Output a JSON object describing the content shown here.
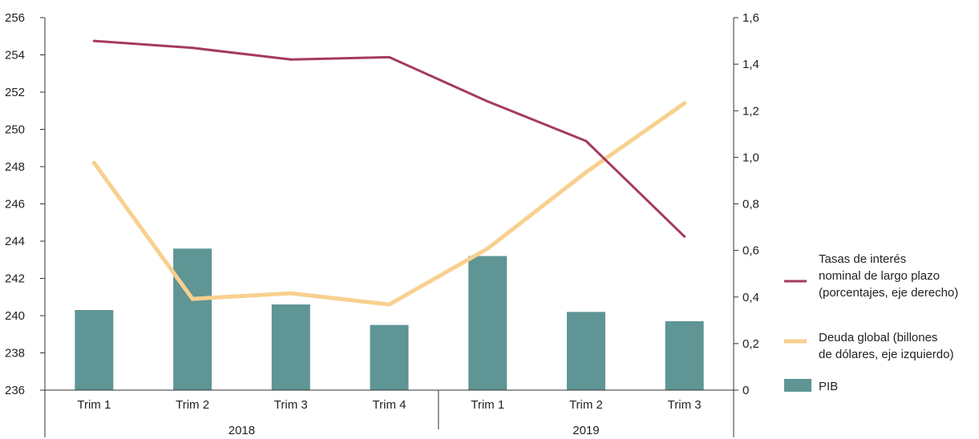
{
  "chart_data": {
    "type": "bar",
    "title": "",
    "xlabel": "",
    "ylabel_left": "",
    "ylabel_right": "",
    "categories": [
      "Trim 1",
      "Trim 2",
      "Trim 3",
      "Trim 4",
      "Trim 1",
      "Trim 2",
      "Trim 3"
    ],
    "groups": [
      {
        "label": "2018",
        "count": 4
      },
      {
        "label": "2019",
        "count": 3
      }
    ],
    "ylim_left": [
      236,
      256
    ],
    "yticks_left": [
      "236",
      "238",
      "240",
      "242",
      "244",
      "246",
      "248",
      "250",
      "252",
      "254",
      "256"
    ],
    "ylim_right": [
      0,
      1.6
    ],
    "yticks_right": [
      "0",
      "0,2",
      "0,4",
      "0,6",
      "0,8",
      "1,0",
      "1,2",
      "1,4",
      "1,6"
    ],
    "grid": false,
    "legend_position": "right",
    "series": [
      {
        "name": "PIB",
        "type": "bar",
        "axis": "left",
        "color": "#5f9595",
        "values": [
          240.3,
          243.6,
          240.6,
          239.5,
          243.2,
          240.2,
          239.7
        ]
      },
      {
        "name": "Tasas de interés nominal de largo plazo (porcentajes, eje derecho)",
        "legend_lines": [
          "Tasas de interés",
          "nominal de largo plazo",
          "(porcentajes, eje derecho)"
        ],
        "type": "line",
        "axis": "right",
        "color": "#a53a5e",
        "values": [
          1.5,
          1.47,
          1.42,
          1.43,
          1.24,
          1.07,
          0.66
        ]
      },
      {
        "name": "Deuda global (billones de dólares, eje izquierdo)",
        "legend_lines": [
          "Deuda global (billones",
          "de dólares, eje izquierdo)"
        ],
        "type": "line",
        "axis": "left",
        "color": "#f8d08f",
        "values": [
          248.2,
          240.9,
          241.2,
          240.6,
          243.6,
          247.7,
          251.4
        ]
      }
    ]
  }
}
